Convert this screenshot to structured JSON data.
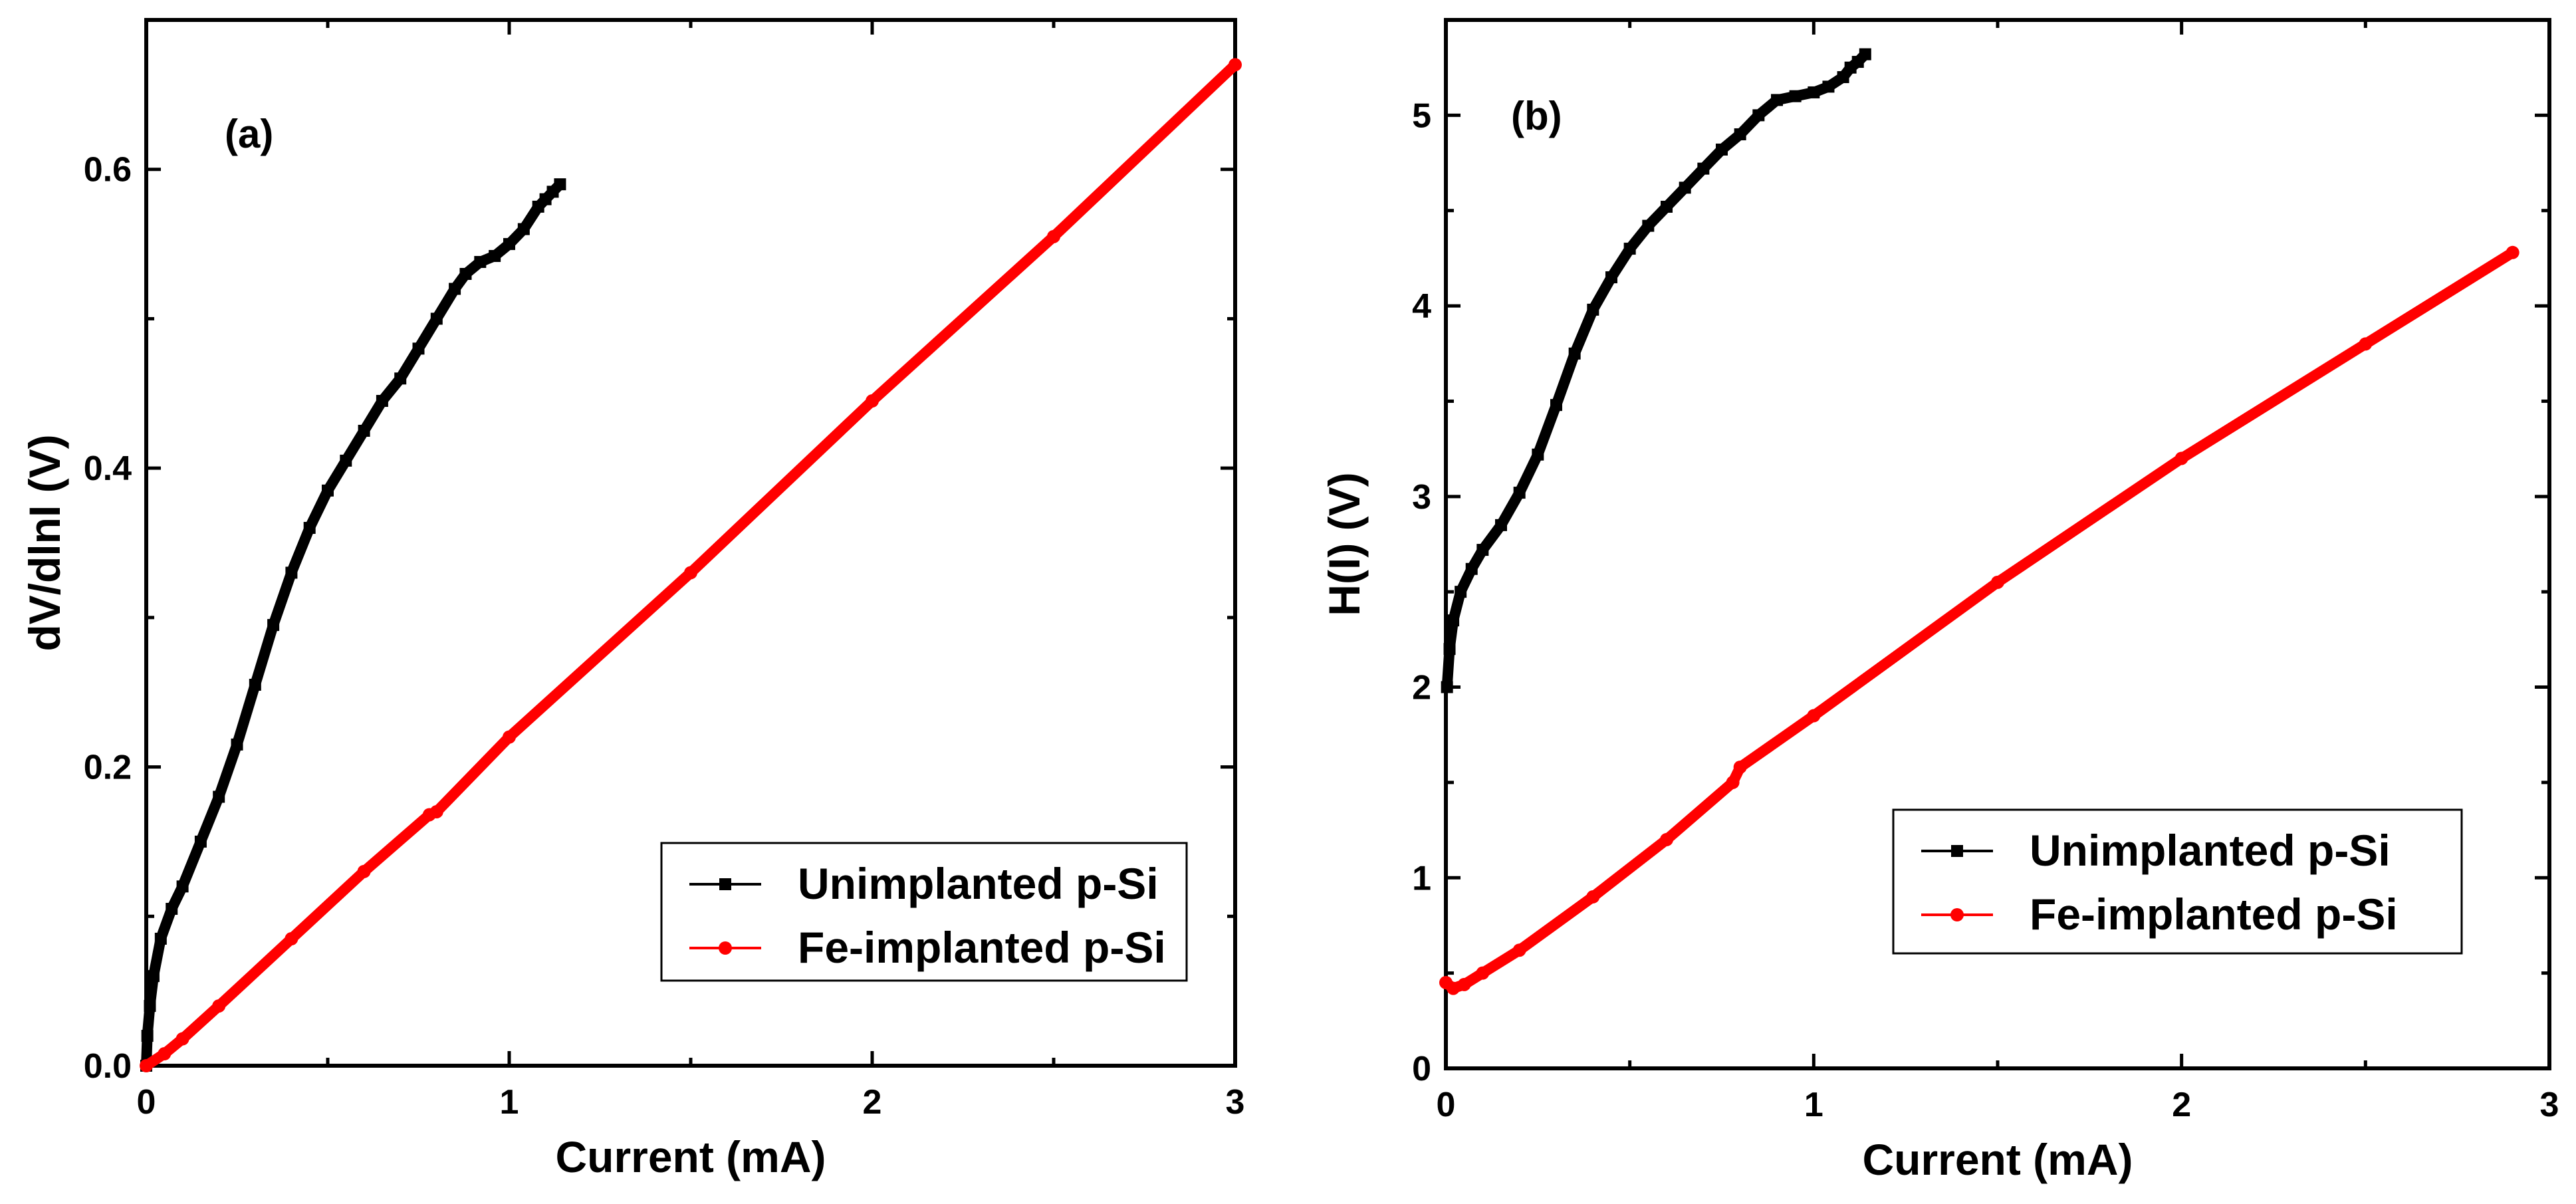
{
  "chart_data": [
    {
      "type": "line",
      "panel_label": "(a)",
      "xlabel": "Current (mA)",
      "ylabel": "dV/dlnI (V)",
      "xlim": [
        0,
        3
      ],
      "ylim": [
        0,
        0.7
      ],
      "xticks": [
        0,
        1,
        2,
        3
      ],
      "xtick_labels": [
        "0",
        "1",
        "2",
        "3"
      ],
      "yticks": [
        0.0,
        0.2,
        0.4,
        0.6
      ],
      "ytick_labels": [
        "0.0",
        "0.2",
        "0.4",
        "0.6"
      ],
      "legend_position": "bottom-right",
      "series": [
        {
          "name": "Unimplanted p-Si",
          "color": "#000000",
          "marker": "square",
          "x": [
            0,
            0.003,
            0.01,
            0.02,
            0.04,
            0.07,
            0.1,
            0.15,
            0.2,
            0.25,
            0.3,
            0.35,
            0.4,
            0.45,
            0.5,
            0.55,
            0.6,
            0.65,
            0.7,
            0.75,
            0.8,
            0.85,
            0.88,
            0.92,
            0.96,
            1.0,
            1.04,
            1.08,
            1.1,
            1.12,
            1.14
          ],
          "y": [
            0,
            0.02,
            0.04,
            0.06,
            0.085,
            0.105,
            0.12,
            0.15,
            0.18,
            0.215,
            0.255,
            0.295,
            0.33,
            0.36,
            0.385,
            0.405,
            0.425,
            0.445,
            0.46,
            0.48,
            0.5,
            0.52,
            0.53,
            0.538,
            0.542,
            0.55,
            0.56,
            0.575,
            0.58,
            0.585,
            0.59
          ]
        },
        {
          "name": "Fe-implanted p-Si",
          "color": "#ff0000",
          "marker": "circle",
          "x": [
            0,
            0.05,
            0.1,
            0.2,
            0.4,
            0.6,
            0.78,
            0.8,
            1.0,
            1.5,
            2.0,
            2.5,
            3.0
          ],
          "y": [
            0,
            0.008,
            0.018,
            0.04,
            0.085,
            0.13,
            0.168,
            0.17,
            0.22,
            0.33,
            0.445,
            0.555,
            0.67
          ]
        }
      ]
    },
    {
      "type": "line",
      "panel_label": "(b)",
      "xlabel": "Current (mA)",
      "ylabel": "H(I) (V)",
      "xlim": [
        0,
        3
      ],
      "ylim": [
        0,
        5.5
      ],
      "xticks": [
        0,
        1,
        2,
        3
      ],
      "xtick_labels": [
        "0",
        "1",
        "2",
        "3"
      ],
      "yticks": [
        0,
        1,
        2,
        3,
        4,
        5
      ],
      "ytick_labels": [
        "0",
        "1",
        "2",
        "3",
        "4",
        "5"
      ],
      "legend_position": "bottom-right",
      "series": [
        {
          "name": "Unimplanted p-Si",
          "color": "#000000",
          "marker": "square",
          "x": [
            0.003,
            0.01,
            0.02,
            0.04,
            0.07,
            0.1,
            0.15,
            0.2,
            0.25,
            0.3,
            0.35,
            0.4,
            0.45,
            0.5,
            0.55,
            0.6,
            0.65,
            0.7,
            0.75,
            0.8,
            0.85,
            0.9,
            0.95,
            1.0,
            1.04,
            1.08,
            1.1,
            1.12,
            1.14
          ],
          "y": [
            2.0,
            2.2,
            2.35,
            2.5,
            2.62,
            2.72,
            2.85,
            3.02,
            3.22,
            3.48,
            3.75,
            3.98,
            4.15,
            4.3,
            4.42,
            4.52,
            4.62,
            4.72,
            4.82,
            4.9,
            5.0,
            5.08,
            5.1,
            5.12,
            5.15,
            5.2,
            5.25,
            5.28,
            5.32
          ]
        },
        {
          "name": "Fe-implanted p-Si",
          "color": "#ff0000",
          "marker": "circle",
          "x": [
            0,
            0.02,
            0.05,
            0.1,
            0.2,
            0.4,
            0.6,
            0.78,
            0.8,
            1.0,
            1.5,
            2.0,
            2.5,
            2.9
          ],
          "y": [
            0.45,
            0.42,
            0.44,
            0.5,
            0.62,
            0.9,
            1.2,
            1.5,
            1.58,
            1.85,
            2.55,
            3.2,
            3.8,
            4.28
          ]
        }
      ]
    }
  ]
}
